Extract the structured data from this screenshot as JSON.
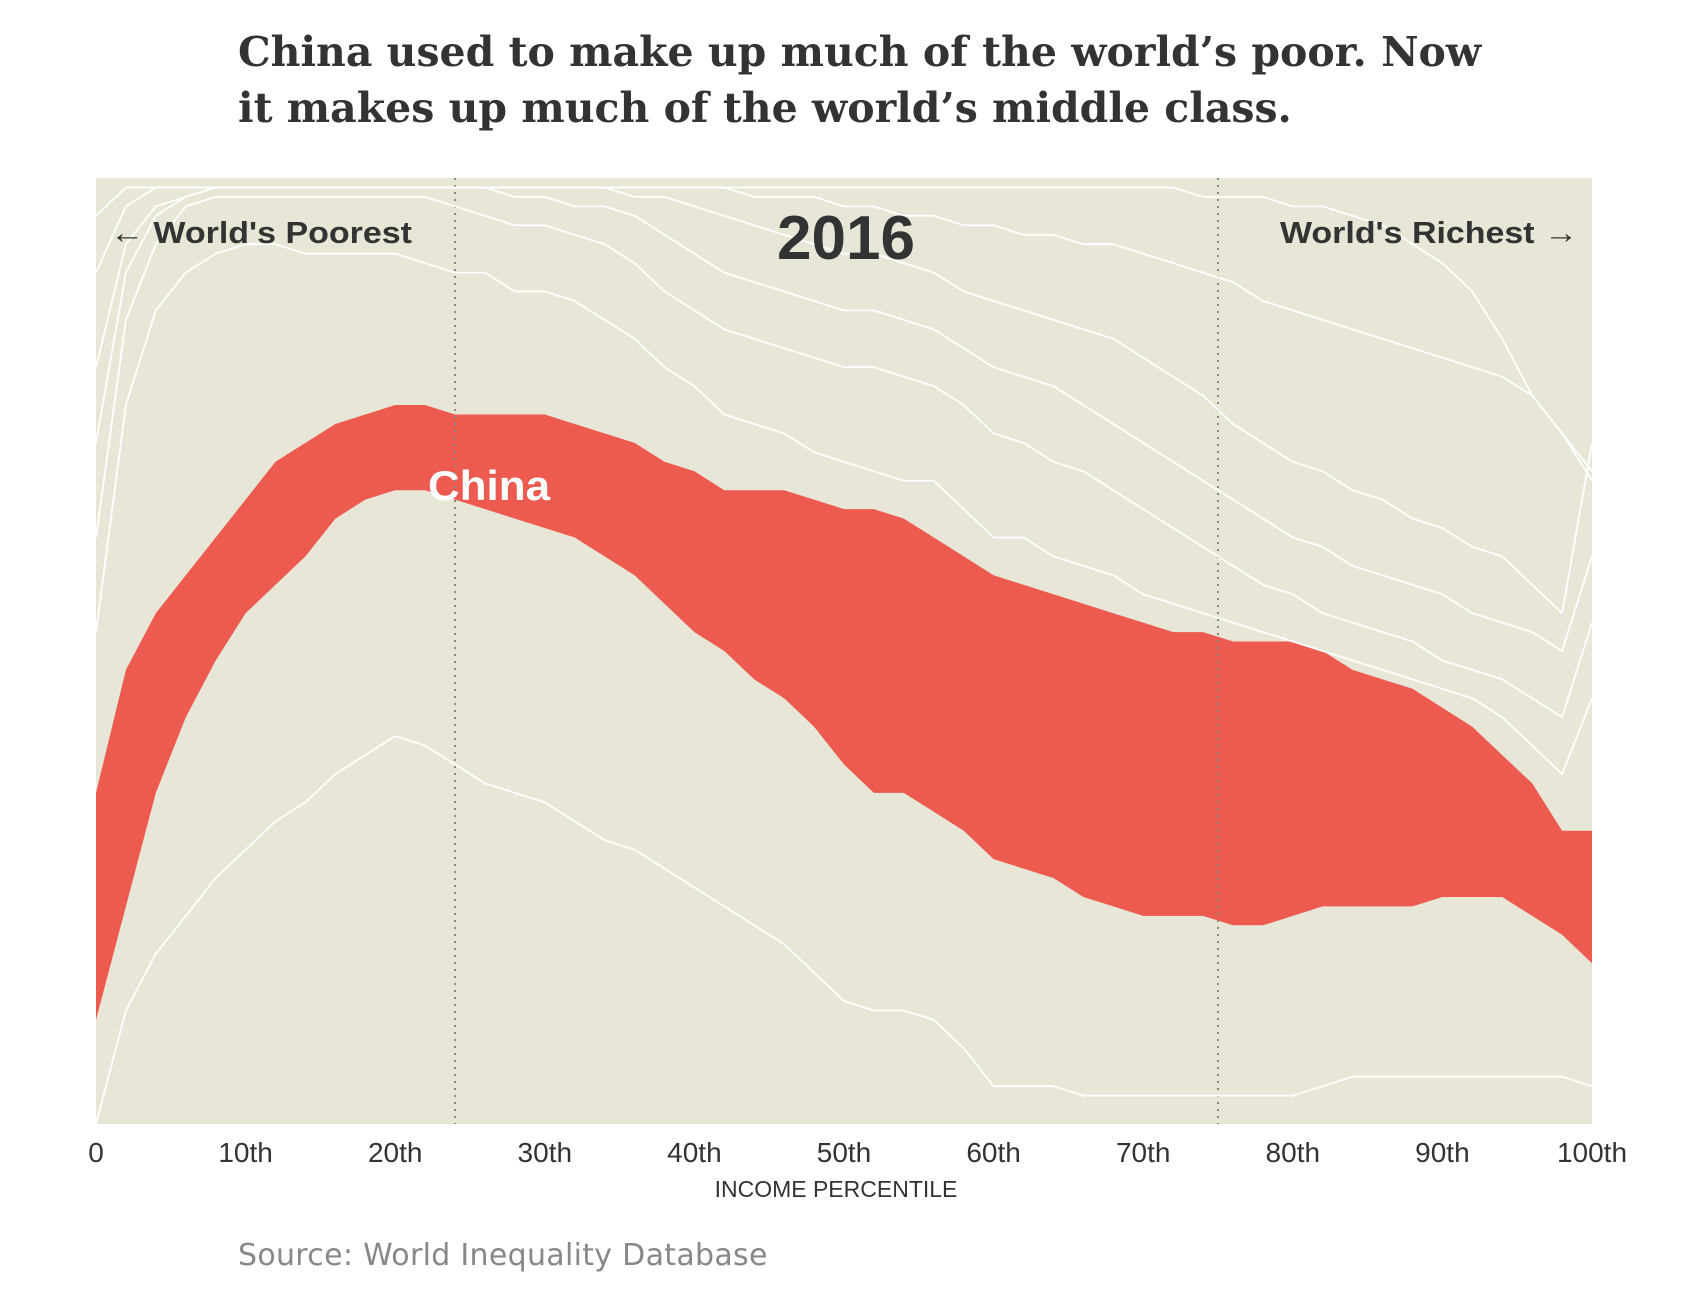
{
  "headline": {
    "line1": "China used to make up much of the world’s poor. Now",
    "line2": "it makes up much of the world’s middle class."
  },
  "source": "Source: World Inequality Database",
  "chart_data": {
    "type": "area",
    "year_label": "2016",
    "left_annotation": "← World's Poorest",
    "right_annotation": "World's Richest →",
    "highlight_label": "China",
    "xlabel": "INCOME PERCENTILE",
    "x_ticks": [
      {
        "value": 0,
        "label": "0"
      },
      {
        "value": 10,
        "label": "10th"
      },
      {
        "value": 20,
        "label": "20th"
      },
      {
        "value": 30,
        "label": "30th"
      },
      {
        "value": 40,
        "label": "40th"
      },
      {
        "value": 50,
        "label": "50th"
      },
      {
        "value": 60,
        "label": "60th"
      },
      {
        "value": 70,
        "label": "70th"
      },
      {
        "value": 80,
        "label": "80th"
      },
      {
        "value": 90,
        "label": "90th"
      },
      {
        "value": 100,
        "label": "100th"
      }
    ],
    "xlim": [
      0,
      100
    ],
    "ylim": [
      0,
      1
    ],
    "reference_lines_x": [
      24,
      75
    ],
    "highlight_series": "China",
    "colors": {
      "background": "#e8e6d6",
      "highlight": "#ec5a50",
      "lines": "#ffffff",
      "text": "#333333",
      "reference": "#8a8a7a"
    },
    "x": [
      0,
      2,
      4,
      6,
      8,
      10,
      12,
      14,
      16,
      18,
      20,
      22,
      24,
      26,
      28,
      30,
      32,
      34,
      36,
      38,
      40,
      42,
      44,
      46,
      48,
      50,
      52,
      54,
      56,
      58,
      60,
      62,
      64,
      66,
      68,
      70,
      72,
      74,
      76,
      78,
      80,
      82,
      84,
      86,
      88,
      90,
      92,
      94,
      96,
      98,
      100
    ],
    "boundaries": [
      {
        "name": "b1",
        "values": [
          0.0,
          0.12,
          0.18,
          0.22,
          0.26,
          0.29,
          0.32,
          0.34,
          0.37,
          0.39,
          0.41,
          0.4,
          0.38,
          0.36,
          0.35,
          0.34,
          0.32,
          0.3,
          0.29,
          0.27,
          0.25,
          0.23,
          0.21,
          0.19,
          0.16,
          0.13,
          0.12,
          0.12,
          0.11,
          0.08,
          0.04,
          0.04,
          0.04,
          0.03,
          0.03,
          0.03,
          0.03,
          0.03,
          0.03,
          0.03,
          0.03,
          0.04,
          0.05,
          0.05,
          0.05,
          0.05,
          0.05,
          0.05,
          0.05,
          0.05,
          0.04
        ]
      },
      {
        "name": "china_bottom",
        "values": [
          0.11,
          0.23,
          0.35,
          0.43,
          0.49,
          0.54,
          0.57,
          0.6,
          0.64,
          0.66,
          0.67,
          0.67,
          0.66,
          0.65,
          0.64,
          0.63,
          0.62,
          0.6,
          0.58,
          0.55,
          0.52,
          0.5,
          0.47,
          0.45,
          0.42,
          0.38,
          0.35,
          0.35,
          0.33,
          0.31,
          0.28,
          0.27,
          0.26,
          0.24,
          0.23,
          0.22,
          0.22,
          0.22,
          0.21,
          0.21,
          0.22,
          0.23,
          0.23,
          0.23,
          0.23,
          0.24,
          0.24,
          0.24,
          0.22,
          0.2,
          0.17
        ]
      },
      {
        "name": "china_top",
        "values": [
          0.35,
          0.48,
          0.54,
          0.58,
          0.62,
          0.66,
          0.7,
          0.72,
          0.74,
          0.75,
          0.76,
          0.76,
          0.75,
          0.75,
          0.75,
          0.75,
          0.74,
          0.73,
          0.72,
          0.7,
          0.69,
          0.67,
          0.67,
          0.67,
          0.66,
          0.65,
          0.65,
          0.64,
          0.62,
          0.6,
          0.58,
          0.57,
          0.56,
          0.55,
          0.54,
          0.53,
          0.52,
          0.52,
          0.51,
          0.51,
          0.51,
          0.5,
          0.48,
          0.47,
          0.46,
          0.44,
          0.42,
          0.39,
          0.36,
          0.31,
          0.31
        ]
      },
      {
        "name": "b4",
        "values": [
          0.52,
          0.76,
          0.86,
          0.9,
          0.92,
          0.93,
          0.93,
          0.92,
          0.92,
          0.92,
          0.92,
          0.91,
          0.9,
          0.9,
          0.88,
          0.88,
          0.87,
          0.85,
          0.83,
          0.8,
          0.78,
          0.75,
          0.74,
          0.73,
          0.71,
          0.7,
          0.69,
          0.68,
          0.68,
          0.65,
          0.62,
          0.62,
          0.6,
          0.59,
          0.58,
          0.56,
          0.55,
          0.54,
          0.53,
          0.52,
          0.51,
          0.5,
          0.49,
          0.48,
          0.47,
          0.46,
          0.45,
          0.43,
          0.4,
          0.37,
          0.45
        ]
      },
      {
        "name": "b5",
        "values": [
          0.62,
          0.85,
          0.93,
          0.97,
          0.98,
          0.98,
          0.98,
          0.98,
          0.98,
          0.98,
          0.98,
          0.98,
          0.97,
          0.96,
          0.95,
          0.95,
          0.94,
          0.93,
          0.91,
          0.88,
          0.86,
          0.84,
          0.83,
          0.82,
          0.81,
          0.8,
          0.8,
          0.79,
          0.78,
          0.76,
          0.73,
          0.72,
          0.7,
          0.69,
          0.67,
          0.65,
          0.63,
          0.61,
          0.59,
          0.57,
          0.56,
          0.54,
          0.53,
          0.52,
          0.51,
          0.49,
          0.48,
          0.47,
          0.45,
          0.43,
          0.53
        ]
      },
      {
        "name": "b6",
        "values": [
          0.72,
          0.9,
          0.96,
          0.98,
          0.99,
          0.99,
          0.99,
          0.99,
          0.99,
          0.99,
          0.99,
          0.99,
          0.99,
          0.99,
          0.98,
          0.98,
          0.97,
          0.97,
          0.96,
          0.94,
          0.92,
          0.9,
          0.89,
          0.88,
          0.87,
          0.86,
          0.86,
          0.85,
          0.84,
          0.82,
          0.8,
          0.79,
          0.78,
          0.76,
          0.74,
          0.72,
          0.7,
          0.68,
          0.66,
          0.64,
          0.62,
          0.61,
          0.59,
          0.58,
          0.57,
          0.56,
          0.54,
          0.53,
          0.52,
          0.5,
          0.6
        ]
      },
      {
        "name": "b7",
        "values": [
          0.8,
          0.93,
          0.97,
          0.98,
          0.99,
          0.99,
          0.99,
          0.99,
          0.99,
          0.99,
          0.99,
          0.99,
          0.99,
          0.99,
          0.99,
          0.99,
          0.99,
          0.99,
          0.98,
          0.98,
          0.97,
          0.96,
          0.95,
          0.94,
          0.93,
          0.92,
          0.92,
          0.91,
          0.9,
          0.88,
          0.87,
          0.86,
          0.85,
          0.84,
          0.83,
          0.81,
          0.79,
          0.77,
          0.74,
          0.72,
          0.7,
          0.69,
          0.67,
          0.66,
          0.64,
          0.63,
          0.61,
          0.6,
          0.57,
          0.54,
          0.72
        ]
      },
      {
        "name": "b8",
        "values": [
          0.9,
          0.97,
          0.99,
          0.99,
          0.99,
          0.99,
          0.99,
          0.99,
          0.99,
          0.99,
          0.99,
          0.99,
          0.99,
          0.99,
          0.99,
          0.99,
          0.99,
          0.99,
          0.99,
          0.99,
          0.99,
          0.99,
          0.98,
          0.98,
          0.98,
          0.97,
          0.97,
          0.96,
          0.96,
          0.95,
          0.95,
          0.94,
          0.94,
          0.93,
          0.93,
          0.92,
          0.91,
          0.9,
          0.89,
          0.87,
          0.86,
          0.85,
          0.84,
          0.83,
          0.82,
          0.81,
          0.8,
          0.79,
          0.77,
          0.73,
          0.69
        ]
      },
      {
        "name": "b9",
        "values": [
          0.96,
          0.99,
          0.99,
          0.99,
          0.99,
          0.99,
          0.99,
          0.99,
          0.99,
          0.99,
          0.99,
          0.99,
          0.99,
          0.99,
          0.99,
          0.99,
          0.99,
          0.99,
          0.99,
          0.99,
          0.99,
          0.99,
          0.99,
          0.99,
          0.99,
          0.99,
          0.99,
          0.99,
          0.99,
          0.99,
          0.99,
          0.99,
          0.99,
          0.99,
          0.99,
          0.99,
          0.99,
          0.98,
          0.98,
          0.98,
          0.97,
          0.97,
          0.96,
          0.95,
          0.93,
          0.91,
          0.88,
          0.83,
          0.77,
          0.73,
          0.68
        ]
      }
    ]
  }
}
